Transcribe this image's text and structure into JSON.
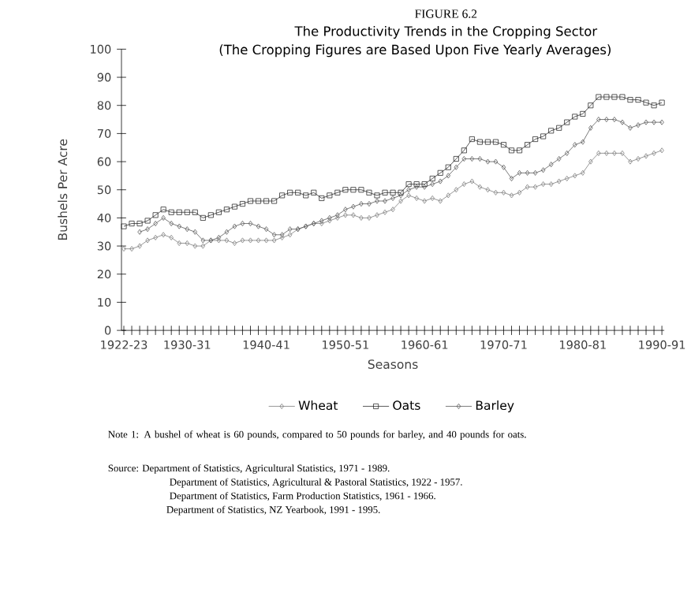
{
  "chart_data": {
    "type": "line",
    "title": "The Productivity Trends in the Cropping Sector",
    "subtitle": "(The Cropping Figures are Based Upon Five Yearly Averages)",
    "xlabel": "Seasons",
    "ylabel": "Bushels Per Acre",
    "categories": [
      "1922-23",
      null,
      null,
      null,
      null,
      null,
      null,
      null,
      "1930-31",
      null,
      null,
      null,
      null,
      null,
      null,
      null,
      null,
      null,
      "1940-41",
      null,
      null,
      null,
      null,
      null,
      null,
      null,
      null,
      null,
      "1950-51",
      null,
      null,
      null,
      null,
      null,
      null,
      null,
      null,
      null,
      "1960-61",
      null,
      null,
      null,
      null,
      null,
      null,
      null,
      null,
      null,
      "1970-71",
      null,
      null,
      null,
      null,
      null,
      null,
      null,
      null,
      null,
      "1980-81",
      null,
      null,
      null,
      null,
      null,
      null,
      null,
      null,
      null,
      "1990-91"
    ],
    "series": [
      {
        "name": "Wheat",
        "color": "#7a7a7a",
        "marker": "diamond",
        "values": [
          29,
          29,
          30,
          32,
          33,
          34,
          33,
          31,
          31,
          30,
          30,
          32,
          32,
          32,
          31,
          32,
          32,
          32,
          32,
          32,
          33,
          34,
          36,
          37,
          38,
          38,
          39,
          40,
          41,
          41,
          40,
          40,
          41,
          42,
          43,
          46,
          48,
          47,
          46,
          47,
          46,
          48,
          50,
          52,
          53,
          51,
          50,
          49,
          49,
          48,
          49,
          51,
          51,
          52,
          52,
          53,
          54,
          55,
          56,
          60,
          63,
          63,
          63,
          63,
          60,
          61,
          62,
          63,
          64
        ]
      },
      {
        "name": "Oats",
        "color": "#2a2a2a",
        "marker": "square",
        "values": [
          37,
          38,
          38,
          39,
          41,
          43,
          42,
          42,
          42,
          42,
          40,
          41,
          42,
          43,
          44,
          45,
          46,
          46,
          46,
          46,
          48,
          49,
          49,
          48,
          49,
          47,
          48,
          49,
          50,
          50,
          50,
          49,
          48,
          49,
          49,
          49,
          52,
          52,
          52,
          54,
          56,
          58,
          61,
          64,
          68,
          67,
          67,
          67,
          66,
          64,
          64,
          66,
          68,
          69,
          71,
          72,
          74,
          76,
          77,
          80,
          83,
          83,
          83,
          83,
          82,
          82,
          81,
          80,
          81
        ]
      },
      {
        "name": "Barley",
        "color": "#555555",
        "marker": "diamond",
        "values": [
          null,
          null,
          35,
          36,
          38,
          40,
          38,
          37,
          36,
          35,
          32,
          32,
          33,
          35,
          37,
          38,
          38,
          37,
          36,
          34,
          34,
          36,
          36,
          37,
          38,
          39,
          40,
          41,
          43,
          44,
          45,
          45,
          46,
          46,
          47,
          48,
          50,
          51,
          51,
          52,
          53,
          55,
          58,
          61,
          61,
          61,
          60,
          60,
          58,
          54,
          56,
          56,
          56,
          57,
          59,
          61,
          63,
          66,
          67,
          72,
          75,
          75,
          75,
          74,
          72,
          73,
          74,
          74,
          74
        ]
      }
    ],
    "ylim": [
      0,
      100
    ],
    "yticks": [
      0,
      10,
      20,
      30,
      40,
      50,
      60,
      70,
      80,
      90,
      100
    ],
    "grid": false,
    "legend": "bottom",
    "line_style": "solid",
    "annotations": [
      "FIGURE 6.2",
      "Note 1: A bushel of wheat is 60 pounds, compared to 50 pounds for barley, and 40 pounds for oats.",
      "Source: Department of Statistics, Agricultural Statistics, 1971 - 1989.",
      "Department of Statistics, Agricultural & Pastoral Statistics, 1922 - 1957.",
      "Department of Statistics, Farm Production Statistics, 1961 - 1966.",
      "Department of Statistics, NZ Yearbook, 1991 - 1995."
    ]
  }
}
